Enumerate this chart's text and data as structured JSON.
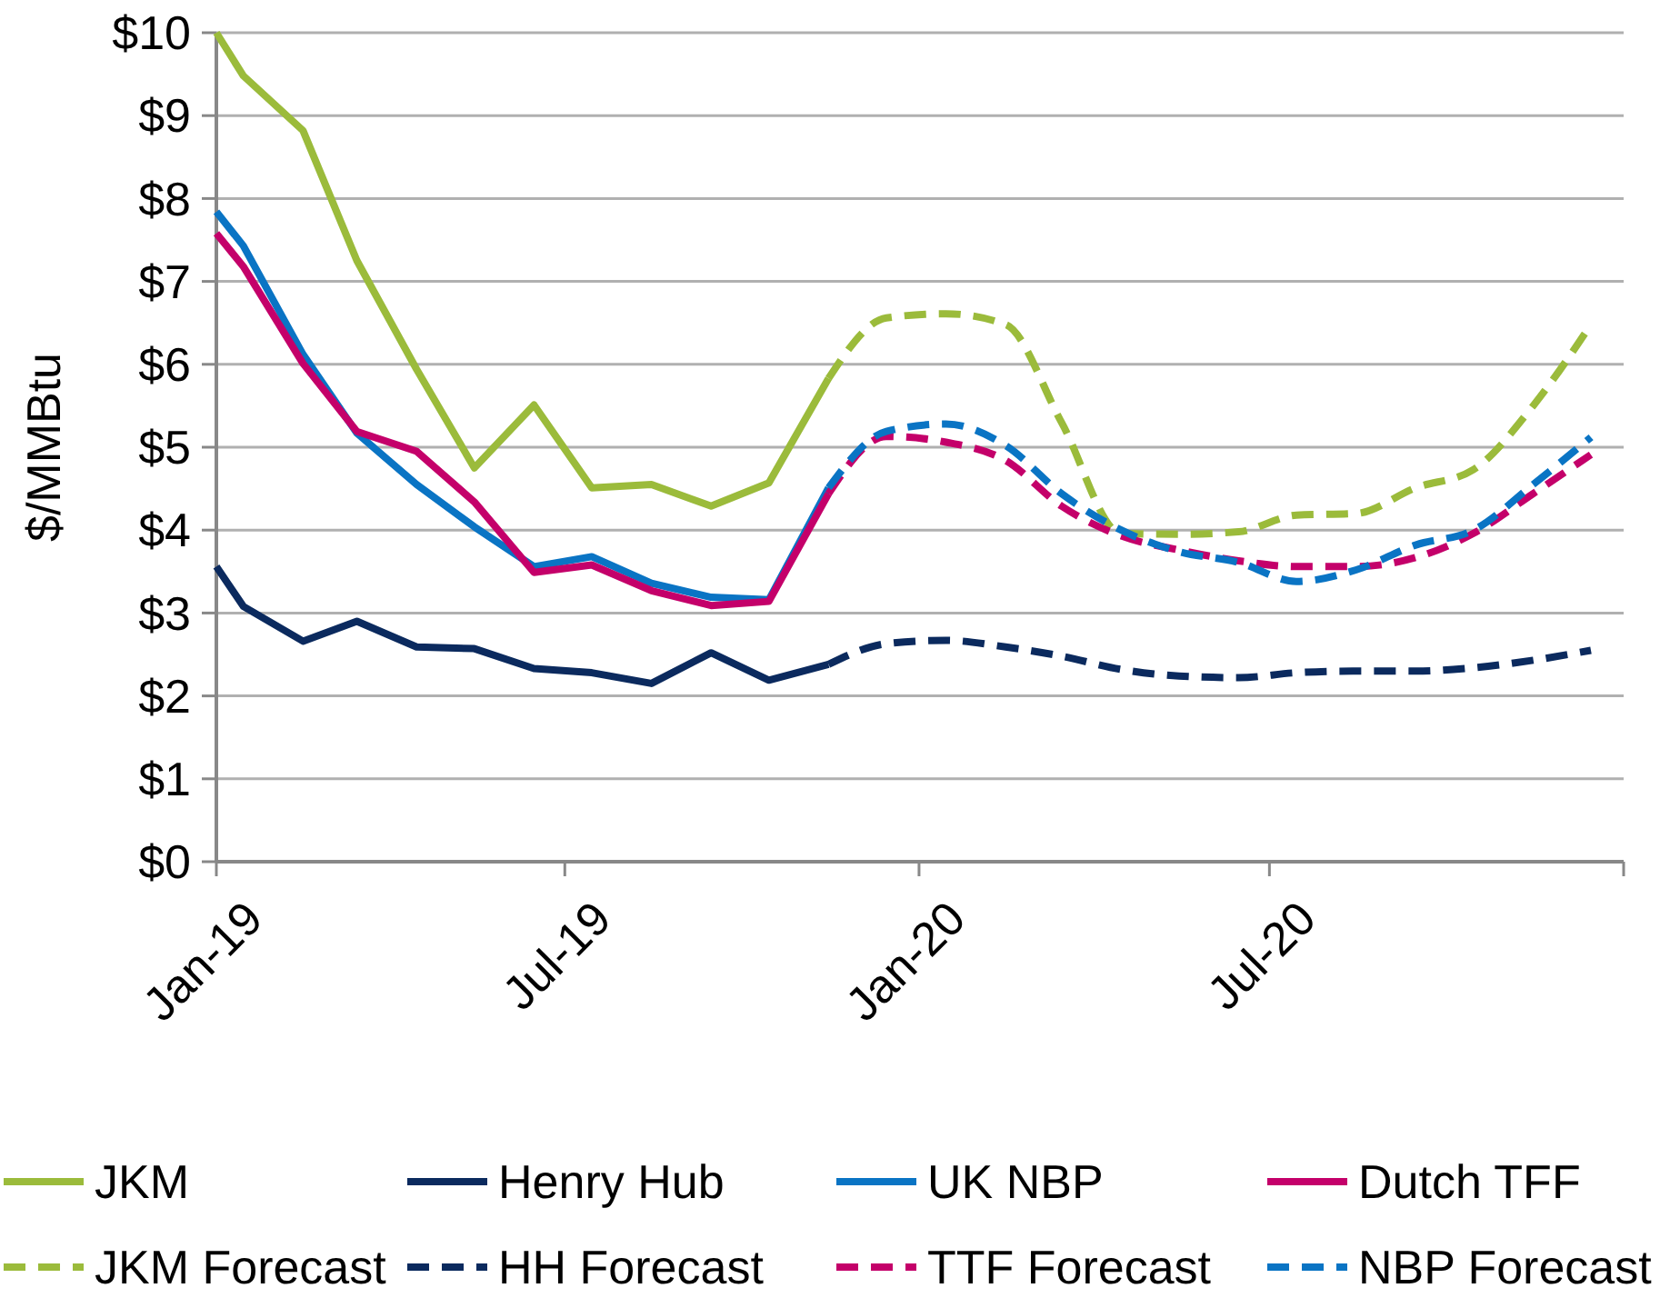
{
  "chart_data": {
    "type": "line",
    "ylabel": "$/MMBtu",
    "xlim": [
      "2019-01-01",
      "2021-01-01"
    ],
    "xticks": [
      {
        "value": "2019-01-01",
        "label": "Jan-19"
      },
      {
        "value": "2019-07-01",
        "label": "Jul-19"
      },
      {
        "value": "2020-01-01",
        "label": "Jan-20"
      },
      {
        "value": "2020-07-01",
        "label": "Jul-20"
      },
      {
        "value": "2021-01-01",
        "label": null
      }
    ],
    "ylim": [
      0,
      10
    ],
    "yticks": [
      {
        "value": 0,
        "label": "$0"
      },
      {
        "value": 1,
        "label": "$1"
      },
      {
        "value": 2,
        "label": "$2"
      },
      {
        "value": 3,
        "label": "$3"
      },
      {
        "value": 4,
        "label": "$4"
      },
      {
        "value": 5,
        "label": "$5"
      },
      {
        "value": 6,
        "label": "$6"
      },
      {
        "value": 7,
        "label": "$7"
      },
      {
        "value": 8,
        "label": "$8"
      },
      {
        "value": 9,
        "label": "$9"
      },
      {
        "value": 10,
        "label": "$10"
      }
    ],
    "grid": "y",
    "legend": "bottom",
    "line_style": "solid",
    "marker": "none",
    "series": [
      {
        "name": "JKM",
        "color": "#9bbb3b",
        "x": [
          "2019-01-01",
          "2019-01-15",
          "2019-02-15",
          "2019-03-15",
          "2019-04-15",
          "2019-05-15",
          "2019-06-15",
          "2019-07-15",
          "2019-08-15",
          "2019-09-15",
          "2019-10-15",
          "2019-11-15"
        ],
        "values": [
          10.0,
          9.48,
          8.82,
          7.25,
          5.94,
          4.75,
          5.51,
          4.51,
          4.55,
          4.29,
          4.57,
          5.83
        ]
      },
      {
        "name": "Henry Hub",
        "color": "#0b2a5e",
        "x": [
          "2019-01-01",
          "2019-01-15",
          "2019-02-15",
          "2019-03-15",
          "2019-04-15",
          "2019-05-15",
          "2019-06-15",
          "2019-07-15",
          "2019-08-15",
          "2019-09-15",
          "2019-10-15",
          "2019-11-15"
        ],
        "values": [
          3.56,
          3.08,
          2.66,
          2.9,
          2.59,
          2.57,
          2.33,
          2.28,
          2.15,
          2.52,
          2.19,
          2.38
        ]
      },
      {
        "name": "UK NBP",
        "color": "#0a74c4",
        "x": [
          "2019-01-01",
          "2019-01-15",
          "2019-02-15",
          "2019-03-15",
          "2019-04-15",
          "2019-05-15",
          "2019-06-15",
          "2019-07-15",
          "2019-08-15",
          "2019-09-15",
          "2019-10-15",
          "2019-11-15"
        ],
        "values": [
          7.84,
          7.43,
          6.12,
          5.17,
          4.55,
          4.04,
          3.56,
          3.68,
          3.36,
          3.19,
          3.16,
          4.51
        ]
      },
      {
        "name": "Dutch TFF",
        "color": "#c4006a",
        "x": [
          "2019-01-01",
          "2019-01-15",
          "2019-02-15",
          "2019-03-15",
          "2019-04-15",
          "2019-05-15",
          "2019-06-15",
          "2019-07-15",
          "2019-08-15",
          "2019-09-15",
          "2019-10-15",
          "2019-11-15"
        ],
        "values": [
          7.58,
          7.18,
          6.01,
          5.19,
          4.95,
          4.34,
          3.49,
          3.58,
          3.27,
          3.09,
          3.14,
          4.44
        ]
      },
      {
        "name": "JKM Forecast",
        "color": "#9bbb3b",
        "line_style": "dashed",
        "x": [
          "2019-11-15",
          "2019-12-15",
          "2020-01-15",
          "2020-02-15",
          "2020-03-15",
          "2020-04-15",
          "2020-05-15",
          "2020-06-15",
          "2020-07-15",
          "2020-08-15",
          "2020-09-15",
          "2020-10-15",
          "2020-11-15",
          "2020-12-15"
        ],
        "values": [
          5.83,
          6.56,
          6.61,
          6.48,
          5.3,
          3.96,
          3.95,
          3.98,
          4.18,
          4.2,
          4.51,
          4.73,
          5.5,
          6.48
        ]
      },
      {
        "name": "HH Forecast",
        "color": "#0b2a5e",
        "line_style": "dashed",
        "x": [
          "2019-11-15",
          "2019-12-15",
          "2020-01-15",
          "2020-02-15",
          "2020-03-15",
          "2020-04-15",
          "2020-05-15",
          "2020-06-15",
          "2020-07-15",
          "2020-08-15",
          "2020-09-15",
          "2020-10-15",
          "2020-11-15",
          "2020-12-15"
        ],
        "values": [
          2.38,
          2.63,
          2.67,
          2.59,
          2.48,
          2.32,
          2.24,
          2.22,
          2.28,
          2.3,
          2.3,
          2.34,
          2.43,
          2.55
        ]
      },
      {
        "name": "TTF Forecast",
        "color": "#c4006a",
        "line_style": "dashed",
        "x": [
          "2019-11-15",
          "2019-12-15",
          "2020-01-15",
          "2020-02-15",
          "2020-03-15",
          "2020-04-15",
          "2020-05-15",
          "2020-06-15",
          "2020-07-15",
          "2020-08-15",
          "2020-09-15",
          "2020-10-15",
          "2020-11-15",
          "2020-12-15"
        ],
        "values": [
          4.44,
          5.13,
          5.06,
          4.84,
          4.29,
          3.93,
          3.76,
          3.63,
          3.56,
          3.56,
          3.67,
          3.96,
          4.44,
          4.91
        ]
      },
      {
        "name": "NBP Forecast",
        "color": "#0a74c4",
        "line_style": "dashed",
        "x": [
          "2019-11-15",
          "2019-12-15",
          "2020-01-15",
          "2020-02-15",
          "2020-03-15",
          "2020-04-15",
          "2020-05-15",
          "2020-06-15",
          "2020-07-15",
          "2020-08-15",
          "2020-09-15",
          "2020-10-15",
          "2020-11-15",
          "2020-12-15"
        ],
        "values": [
          4.51,
          5.19,
          5.28,
          5.02,
          4.44,
          4.0,
          3.74,
          3.61,
          3.38,
          3.52,
          3.82,
          4.0,
          4.55,
          5.12
        ]
      }
    ]
  }
}
